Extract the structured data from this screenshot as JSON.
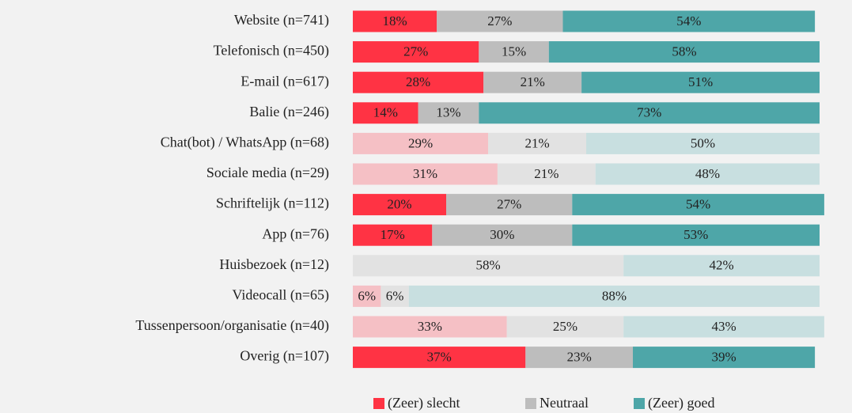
{
  "chart_data": {
    "type": "stacked-bar-horizontal",
    "categories": [
      "Website (n=741)",
      "Telefonisch (n=450)",
      "E-mail (n=617)",
      "Balie (n=246)",
      "Chat(bot) / WhatsApp (n=68)",
      "Sociale media (n=29)",
      "Schriftelijk (n=112)",
      "App (n=76)",
      "Huisbezoek (n=12)",
      "Videocall (n=65)",
      "Tussenpersoon/organisatie (n=40)",
      "Overig (n=107)"
    ],
    "faded": [
      false,
      false,
      false,
      false,
      true,
      true,
      false,
      false,
      true,
      true,
      true,
      false
    ],
    "series": [
      {
        "name": "(Zeer) slecht",
        "color": "#ff3344",
        "faded_color": "#f5c0c5",
        "values": [
          18,
          27,
          28,
          14,
          29,
          31,
          20,
          17,
          null,
          6,
          33,
          37
        ],
        "value_labels": [
          "18%",
          "27%",
          "28%",
          "14%",
          "29%",
          "31%",
          "20%",
          "17%",
          null,
          "6%",
          "33%",
          "37%"
        ]
      },
      {
        "name": "Neutraal",
        "color": "#bdbdbd",
        "faded_color": "#e2e2e2",
        "values": [
          27,
          15,
          21,
          13,
          21,
          21,
          27,
          30,
          58,
          6,
          25,
          23
        ],
        "value_labels": [
          "27%",
          "15%",
          "21%",
          "13%",
          "21%",
          "21%",
          "27%",
          "30%",
          "58%",
          "6%",
          "25%",
          "23%"
        ]
      },
      {
        "name": "(Zeer) goed",
        "color": "#4ea6a8",
        "faded_color": "#c8dfe0",
        "values": [
          54,
          58,
          51,
          73,
          50,
          48,
          54,
          53,
          42,
          88,
          43,
          39
        ],
        "value_labels": [
          "54%",
          "58%",
          "51%",
          "73%",
          "50%",
          "48%",
          "54%",
          "53%",
          "42%",
          "88%",
          "43%",
          "39%"
        ]
      }
    ],
    "xlim": [
      0,
      100
    ],
    "legend": "bottom"
  }
}
